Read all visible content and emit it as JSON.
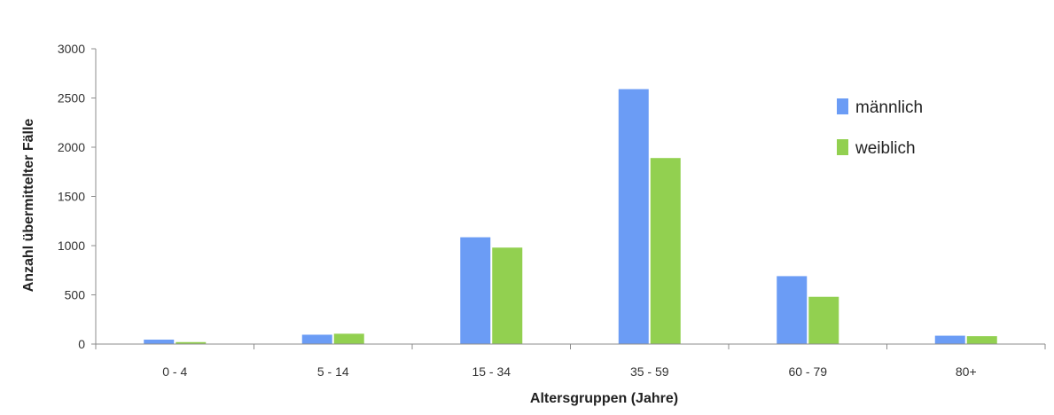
{
  "chart_data": {
    "type": "bar",
    "title": "",
    "xlabel": "Altersgruppen (Jahre)",
    "ylabel": "Anzahl übermittelter Fälle",
    "categories": [
      "0 - 4",
      "5 - 14",
      "15 - 34",
      "35 - 59",
      "60 - 79",
      "80+"
    ],
    "series": [
      {
        "name": "männlich",
        "color": "#6b9cf5",
        "values": [
          45,
          95,
          1085,
          2590,
          690,
          85
        ]
      },
      {
        "name": "weiblich",
        "color": "#92d050",
        "values": [
          20,
          105,
          980,
          1890,
          480,
          80
        ]
      }
    ],
    "yticks": [
      0,
      500,
      1000,
      1500,
      2000,
      2500,
      3000
    ],
    "ylim": [
      0,
      3000
    ],
    "grid": false,
    "legend_position": "top-right"
  }
}
